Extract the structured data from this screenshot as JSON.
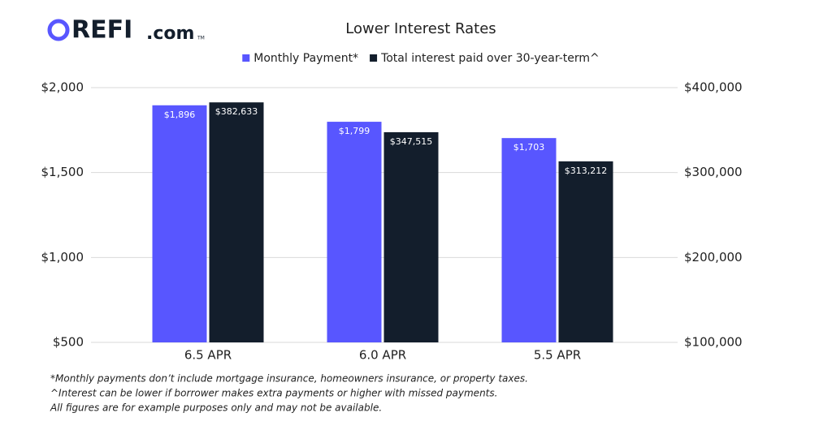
{
  "logo": {
    "main": "REFI",
    "suffix": ".com",
    "mark": "TM"
  },
  "chart_data": {
    "type": "bar",
    "title": "Lower Interest Rates",
    "categories": [
      "6.5 APR",
      "6.0 APR",
      "5.5 APR"
    ],
    "series": [
      {
        "name": "Monthly Payment*",
        "color": "#5856ff",
        "values": [
          1896,
          1799,
          1703
        ],
        "value_labels": [
          "$1,896",
          "$1,799",
          "$1,703"
        ]
      },
      {
        "name": "Total interest paid over 30-year-term^",
        "color": "#131e2c",
        "axis": "y2",
        "values": [
          382633,
          347515,
          313212
        ],
        "value_labels": [
          "$382,633",
          "$347,515",
          "$313,212"
        ]
      }
    ],
    "ylim": [
      500,
      2000
    ],
    "yticks": [
      {
        "value": 500,
        "label": "$500"
      },
      {
        "value": 1000,
        "label": "$1,000"
      },
      {
        "value": 1500,
        "label": "$1,500"
      },
      {
        "value": 2000,
        "label": "$2,000"
      }
    ],
    "y2lim": [
      100000,
      400000
    ],
    "y2ticks": [
      {
        "value": 100000,
        "label": "$100,000"
      },
      {
        "value": 200000,
        "label": "$200,000"
      },
      {
        "value": 300000,
        "label": "$300,000"
      },
      {
        "value": 400000,
        "label": "$400,000"
      }
    ],
    "grid": true,
    "legend": "top"
  },
  "footnotes": [
    "*Monthly payments don’t include mortgage insurance, homeowners insurance, or property taxes.",
    "^Interest can be lower if borrower makes extra payments or higher with missed payments.",
    "All figures are for example purposes only and may not be available."
  ]
}
